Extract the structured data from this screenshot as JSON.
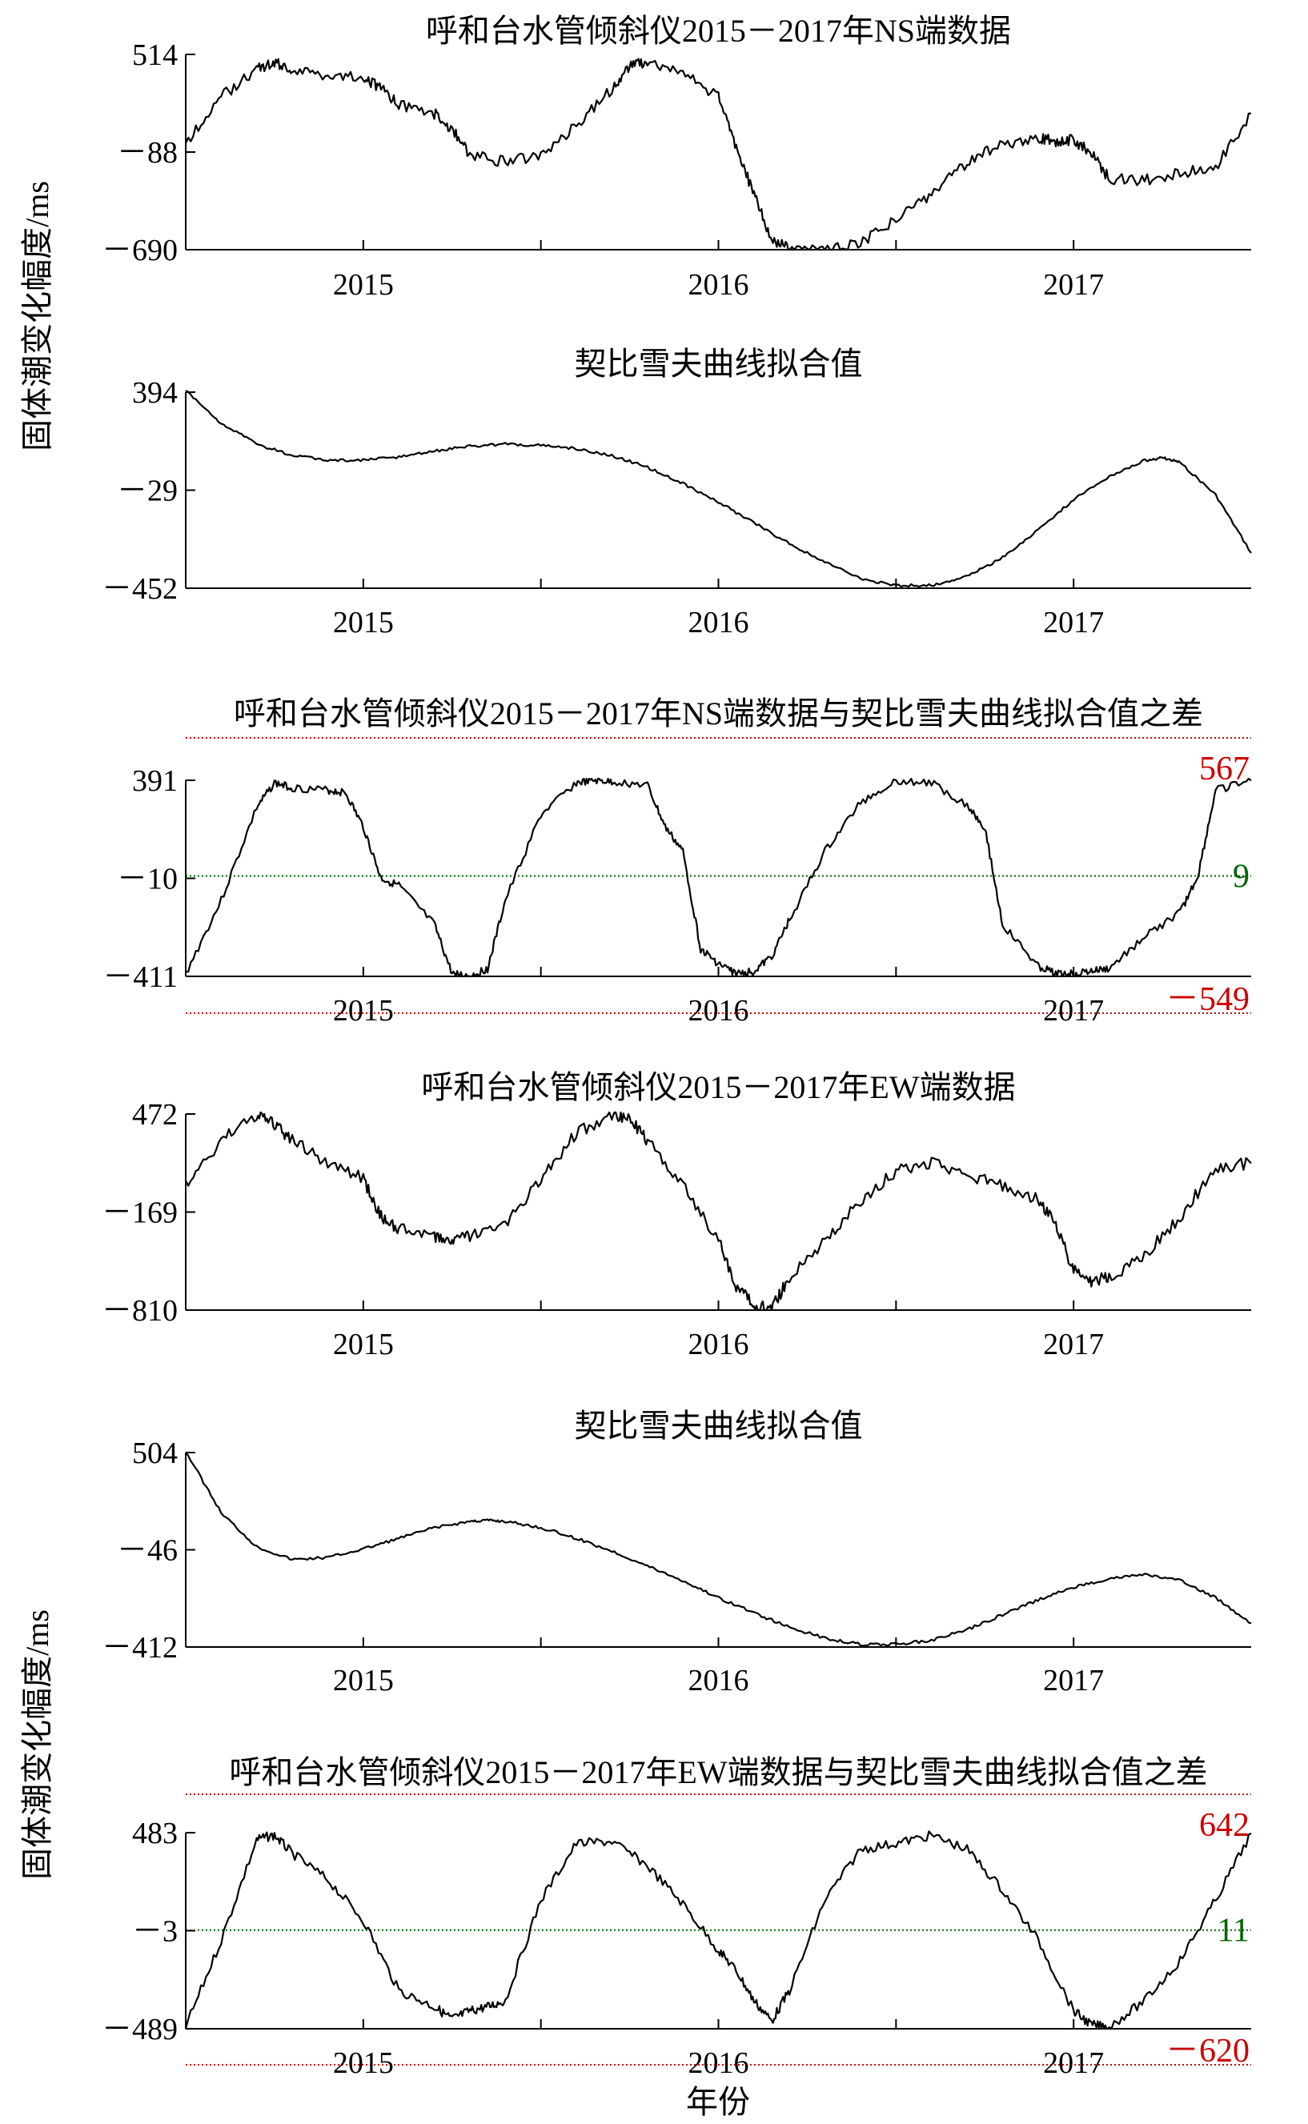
{
  "figure": {
    "ylabel_top": "固体潮变化幅度/ms",
    "ylabel_bottom": "固体潮变化幅度/ms",
    "xlabel": "年份",
    "colors": {
      "line": "#000000",
      "ref_high": "#cc0000",
      "ref_zero": "#006400",
      "axis": "#000000"
    }
  },
  "chart_data": [
    {
      "type": "line",
      "title": "呼和台水管倾斜仪2015－2017年NS端数据",
      "x_ticks": [
        "2015",
        "2016",
        "2017"
      ],
      "y_ticks": [
        "514",
        "－88",
        "－690"
      ],
      "ylim": [
        -690,
        514
      ],
      "xlim": [
        2014.5,
        2017.5
      ],
      "series": [
        {
          "x": [
            2014.5,
            2014.6,
            2014.7,
            2014.75,
            2014.8,
            2014.9,
            2015.0,
            2015.05,
            2015.1,
            2015.2,
            2015.25,
            2015.3,
            2015.4,
            2015.5,
            2015.6,
            2015.7,
            2015.75,
            2015.8,
            2015.9,
            2016.0,
            2016.05,
            2016.1,
            2016.15,
            2016.2,
            2016.3,
            2016.4,
            2016.5,
            2016.6,
            2016.7,
            2016.8,
            2016.9,
            2016.95,
            2017.0,
            2017.05,
            2017.1,
            2017.2,
            2017.3,
            2017.4,
            2017.5
          ],
          "y": [
            -30,
            250,
            430,
            460,
            420,
            390,
            380,
            300,
            200,
            150,
            50,
            -100,
            -150,
            -110,
            80,
            300,
            450,
            470,
            400,
            250,
            -50,
            -350,
            -620,
            -690,
            -700,
            -650,
            -500,
            -350,
            -150,
            -40,
            0,
            -20,
            -10,
            -100,
            -250,
            -260,
            -220,
            -180,
            150
          ]
        }
      ]
    },
    {
      "type": "line",
      "title": "契比雪夫曲线拟合值",
      "x_ticks": [
        "2015",
        "2016",
        "2017"
      ],
      "y_ticks": [
        "394",
        "－29",
        "－452"
      ],
      "ylim": [
        -452,
        394
      ],
      "xlim": [
        2014.5,
        2017.5
      ],
      "series": [
        {
          "x": [
            2014.5,
            2014.6,
            2014.7,
            2014.8,
            2014.9,
            2015.0,
            2015.1,
            2015.2,
            2015.3,
            2015.4,
            2015.5,
            2015.6,
            2015.7,
            2015.8,
            2015.9,
            2016.0,
            2016.1,
            2016.2,
            2016.3,
            2016.4,
            2016.5,
            2016.6,
            2016.7,
            2016.8,
            2016.9,
            2017.0,
            2017.1,
            2017.2,
            2017.25,
            2017.3,
            2017.4,
            2017.5
          ],
          "y": [
            400,
            260,
            170,
            120,
            100,
            100,
            115,
            140,
            160,
            170,
            165,
            150,
            120,
            70,
            0,
            -80,
            -170,
            -260,
            -340,
            -410,
            -440,
            -440,
            -400,
            -320,
            -200,
            -70,
            30,
            100,
            110,
            90,
            -50,
            -300
          ]
        }
      ]
    },
    {
      "type": "line",
      "title": "呼和台水管倾斜仪2015－2017年NS端数据与契比雪夫曲线拟合值之差",
      "x_ticks": [
        "2015",
        "2016",
        "2017"
      ],
      "y_ticks": [
        "391",
        "－10",
        "－411"
      ],
      "ylim": [
        -411,
        391
      ],
      "xlim": [
        2014.5,
        2017.5
      ],
      "reference_labels": {
        "high": "567",
        "zero": "9",
        "low": "－549"
      },
      "reference_values": {
        "high": 567,
        "zero": 9,
        "low": -549
      },
      "series": [
        {
          "x": [
            2014.5,
            2014.6,
            2014.7,
            2014.75,
            2014.8,
            2014.9,
            2014.95,
            2015.0,
            2015.05,
            2015.1,
            2015.2,
            2015.25,
            2015.3,
            2015.35,
            2015.4,
            2015.5,
            2015.6,
            2015.65,
            2015.7,
            2015.8,
            2015.85,
            2015.9,
            2015.95,
            2016.0,
            2016.05,
            2016.1,
            2016.15,
            2016.2,
            2016.3,
            2016.4,
            2016.5,
            2016.6,
            2016.7,
            2016.75,
            2016.8,
            2016.9,
            2016.95,
            2017.0,
            2017.05,
            2017.1,
            2017.2,
            2017.3,
            2017.35,
            2017.4,
            2017.5
          ],
          "y": [
            -400,
            -100,
            280,
            380,
            360,
            350,
            340,
            200,
            -10,
            -40,
            -200,
            -400,
            -410,
            -380,
            -100,
            250,
            380,
            390,
            385,
            370,
            200,
            100,
            -300,
            -360,
            -400,
            -390,
            -330,
            -180,
            100,
            300,
            390,
            380,
            290,
            200,
            -200,
            -370,
            -400,
            -400,
            -390,
            -380,
            -250,
            -150,
            0,
            350,
            390
          ]
        }
      ]
    },
    {
      "type": "line",
      "title": "呼和台水管倾斜仪2015－2017年EW端数据",
      "x_ticks": [
        "2015",
        "2016",
        "2017"
      ],
      "y_ticks": [
        "472",
        "－169",
        "－810"
      ],
      "ylim": [
        -810,
        472
      ],
      "xlim": [
        2014.5,
        2017.5
      ],
      "series": [
        {
          "x": [
            2014.5,
            2014.6,
            2014.7,
            2014.75,
            2014.8,
            2014.9,
            2015.0,
            2015.05,
            2015.1,
            2015.2,
            2015.25,
            2015.3,
            2015.4,
            2015.5,
            2015.6,
            2015.7,
            2015.75,
            2015.8,
            2015.9,
            2016.0,
            2016.05,
            2016.1,
            2016.15,
            2016.2,
            2016.3,
            2016.4,
            2016.5,
            2016.6,
            2016.7,
            2016.8,
            2016.9,
            2016.95,
            2017.0,
            2017.05,
            2017.1,
            2017.2,
            2017.3,
            2017.4,
            2017.5
          ],
          "y": [
            0,
            300,
            470,
            400,
            300,
            150,
            50,
            -200,
            -280,
            -330,
            -350,
            -320,
            -250,
            50,
            350,
            460,
            450,
            300,
            0,
            -350,
            -650,
            -780,
            -800,
            -600,
            -350,
            -100,
            100,
            150,
            80,
            0,
            -80,
            -250,
            -550,
            -620,
            -600,
            -450,
            -200,
            120,
            150
          ]
        }
      ]
    },
    {
      "type": "line",
      "title": "契比雪夫曲线拟合值",
      "x_ticks": [
        "2015",
        "2016",
        "2017"
      ],
      "y_ticks": [
        "504",
        "－46",
        "－412"
      ],
      "ylim": [
        -412,
        504
      ],
      "xlim": [
        2014.5,
        2017.5
      ],
      "series": [
        {
          "x": [
            2014.5,
            2014.6,
            2014.7,
            2014.8,
            2014.9,
            2015.0,
            2015.1,
            2015.2,
            2015.3,
            2015.35,
            2015.4,
            2015.5,
            2015.6,
            2015.7,
            2015.8,
            2015.9,
            2016.0,
            2016.1,
            2016.2,
            2016.3,
            2016.4,
            2016.5,
            2016.6,
            2016.7,
            2016.8,
            2016.9,
            2017.0,
            2017.1,
            2017.2,
            2017.3,
            2017.4,
            2017.5
          ],
          "y": [
            510,
            220,
            60,
            0,
            10,
            50,
            100,
            150,
            180,
            185,
            180,
            150,
            100,
            40,
            -30,
            -100,
            -180,
            -250,
            -320,
            -370,
            -400,
            -400,
            -380,
            -330,
            -260,
            -190,
            -130,
            -90,
            -70,
            -100,
            -180,
            -300
          ]
        }
      ]
    },
    {
      "type": "line",
      "title": "呼和台水管倾斜仪2015－2017年EW端数据与契比雪夫曲线拟合值之差",
      "x_ticks": [
        "2015",
        "2016",
        "2017"
      ],
      "y_ticks": [
        "483",
        "－3",
        "－489"
      ],
      "ylim": [
        -489,
        483
      ],
      "xlim": [
        2014.5,
        2017.5
      ],
      "reference_labels": {
        "high": "642",
        "zero": "11",
        "low": "－620"
      },
      "reference_values": {
        "high": 642,
        "zero": 11,
        "low": -620
      },
      "series": [
        {
          "x": [
            2014.5,
            2014.6,
            2014.7,
            2014.75,
            2014.8,
            2014.9,
            2015.0,
            2015.1,
            2015.2,
            2015.25,
            2015.3,
            2015.35,
            2015.4,
            2015.5,
            2015.6,
            2015.7,
            2015.8,
            2015.9,
            2016.0,
            2016.05,
            2016.1,
            2016.15,
            2016.2,
            2016.3,
            2016.4,
            2016.5,
            2016.6,
            2016.7,
            2016.8,
            2016.9,
            2017.0,
            2017.05,
            2017.1,
            2017.2,
            2017.3,
            2017.4,
            2017.5
          ],
          "y": [
            -480,
            -50,
            450,
            470,
            380,
            250,
            50,
            -300,
            -380,
            -440,
            -400,
            -380,
            -350,
            150,
            430,
            440,
            320,
            130,
            -100,
            -200,
            -350,
            -450,
            -300,
            150,
            400,
            430,
            470,
            400,
            200,
            -50,
            -400,
            -470,
            -480,
            -350,
            -150,
            150,
            480
          ]
        }
      ]
    }
  ]
}
